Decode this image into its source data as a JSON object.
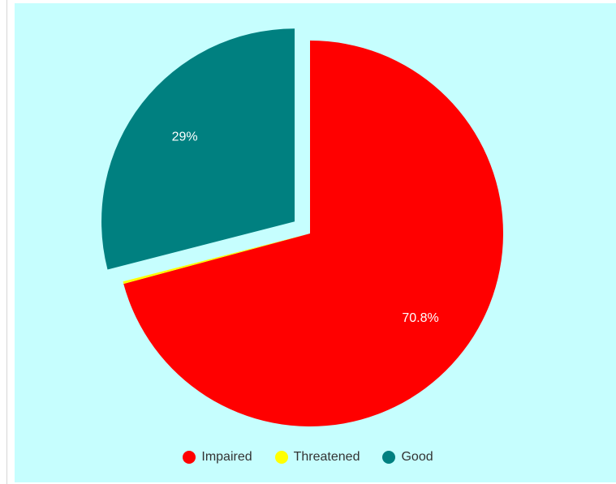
{
  "chart_data": {
    "type": "pie",
    "title": "",
    "series": [
      {
        "name": "Impaired",
        "value": 70.8,
        "color": "#ff0000",
        "label": "70.8%",
        "exploded": false
      },
      {
        "name": "Threatened",
        "value": 0.2,
        "color": "#ffff00",
        "label": "",
        "exploded": false
      },
      {
        "name": "Good",
        "value": 29,
        "color": "#008080",
        "label": "29%",
        "exploded": true
      }
    ],
    "legend_position": "bottom-center",
    "background": "#c6fefe"
  },
  "legend": {
    "items": [
      {
        "label": "Impaired",
        "color": "#ff0000"
      },
      {
        "label": "Threatened",
        "color": "#ffff00"
      },
      {
        "label": "Good",
        "color": "#008080"
      }
    ]
  }
}
